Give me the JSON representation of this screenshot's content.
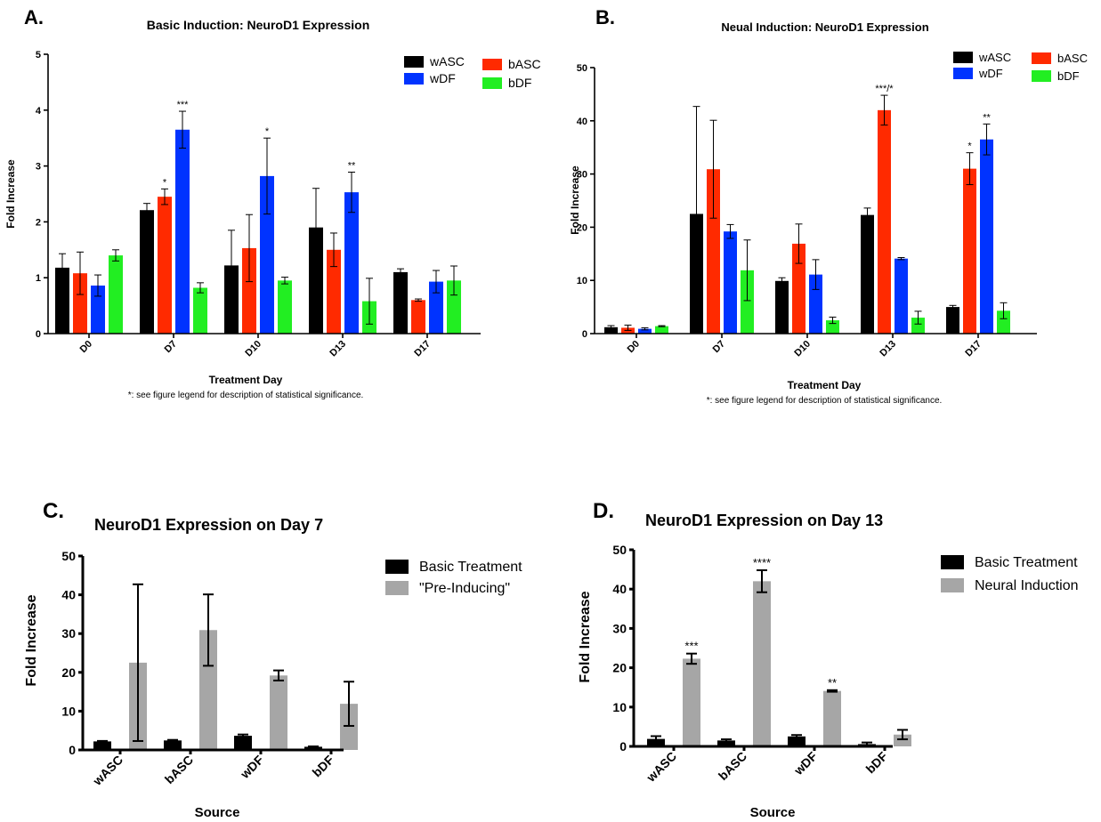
{
  "chart_data": [
    {
      "panel": "A.",
      "type": "bar",
      "title": "Basic Induction: NeuroD1 Expression",
      "xlabel": "Treatment Day",
      "ylabel": "Fold Increase",
      "note": "*: see figure legend for description of statistical significance.",
      "ylim": [
        0,
        5
      ],
      "yticks": [
        "0",
        "1",
        "2",
        "3",
        "4",
        "5"
      ],
      "categories": [
        "D0",
        "D7",
        "D10",
        "D13",
        "D17"
      ],
      "series": [
        {
          "name": "wASC",
          "color": "#000000",
          "values": [
            1.18,
            2.21,
            1.22,
            1.9,
            1.1
          ],
          "errors": [
            0.25,
            0.12,
            0.63,
            0.7,
            0.06
          ],
          "sig": [
            "",
            "",
            "",
            "",
            ""
          ]
        },
        {
          "name": "bASC",
          "color": "#ff2a00",
          "values": [
            1.08,
            2.45,
            1.53,
            1.5,
            0.6
          ],
          "errors": [
            0.38,
            0.14,
            0.6,
            0.3,
            0.02
          ],
          "sig": [
            "",
            "*",
            "",
            "",
            ""
          ]
        },
        {
          "name": "wDF",
          "color": "#0033ff",
          "values": [
            0.86,
            3.65,
            2.82,
            2.53,
            0.93
          ],
          "errors": [
            0.19,
            0.33,
            0.68,
            0.36,
            0.2
          ],
          "sig": [
            "",
            "***",
            "*",
            "**",
            ""
          ]
        },
        {
          "name": "bDF",
          "color": "#22ee22",
          "values": [
            1.4,
            0.82,
            0.95,
            0.58,
            0.95
          ],
          "errors": [
            0.1,
            0.09,
            0.06,
            0.41,
            0.26
          ],
          "sig": [
            "",
            "",
            "",
            "",
            ""
          ]
        }
      ]
    },
    {
      "panel": "B.",
      "type": "bar",
      "title": "Neual Induction: NeuroD1 Expression",
      "xlabel": "Treatment Day",
      "ylabel": "Fold Increase",
      "note": "*: see figure legend for description of statistical significance.",
      "ylim": [
        0,
        50
      ],
      "yticks": [
        "0",
        "10",
        "20",
        "30",
        "40",
        "50"
      ],
      "categories": [
        "D0",
        "D7",
        "D10",
        "D13",
        "D17"
      ],
      "series": [
        {
          "name": "wASC",
          "color": "#000000",
          "values": [
            1.2,
            22.5,
            9.9,
            22.3,
            5.0
          ],
          "errors": [
            0.3,
            20.2,
            0.6,
            1.3,
            0.3
          ],
          "sig": [
            "",
            "",
            "",
            "",
            ""
          ]
        },
        {
          "name": "bASC",
          "color": "#ff2a00",
          "values": [
            1.1,
            30.9,
            16.9,
            42.0,
            31.0
          ],
          "errors": [
            0.5,
            9.2,
            3.7,
            2.8,
            3.0
          ],
          "sig": [
            "",
            "",
            "",
            "***/*",
            "*"
          ]
        },
        {
          "name": "wDF",
          "color": "#0033ff",
          "values": [
            0.9,
            19.2,
            11.1,
            14.1,
            36.5
          ],
          "errors": [
            0.2,
            1.3,
            2.8,
            0.2,
            2.9
          ],
          "sig": [
            "",
            "",
            "",
            "",
            "**"
          ]
        },
        {
          "name": "bDF",
          "color": "#22ee22",
          "values": [
            1.4,
            11.9,
            2.5,
            3.0,
            4.3
          ],
          "errors": [
            0.1,
            5.7,
            0.6,
            1.2,
            1.5
          ],
          "sig": [
            "",
            "",
            "",
            "",
            ""
          ]
        }
      ]
    },
    {
      "panel": "C.",
      "type": "bar",
      "title": "NeuroD1 Expression on Day 7",
      "xlabel": "Source",
      "ylabel": "Fold Increase",
      "ylim": [
        0,
        50
      ],
      "yticks": [
        "0",
        "10",
        "20",
        "30",
        "40",
        "50"
      ],
      "categories": [
        "wASC",
        "bASC",
        "wDF",
        "bDF"
      ],
      "series": [
        {
          "name": "Basic Treatment",
          "color": "#000000",
          "values": [
            2.2,
            2.45,
            3.65,
            0.82
          ],
          "errors": [
            0.12,
            0.14,
            0.33,
            0.09
          ],
          "sig": [
            "",
            "",
            "",
            ""
          ]
        },
        {
          "name": "\"Pre-Inducing\"",
          "color": "#a6a6a6",
          "values": [
            22.5,
            30.9,
            19.2,
            11.9
          ],
          "errors": [
            20.2,
            9.2,
            1.3,
            5.7
          ],
          "sig": [
            "",
            "",
            "",
            ""
          ]
        }
      ]
    },
    {
      "panel": "D.",
      "type": "bar",
      "title": "NeuroD1 Expression on Day 13",
      "xlabel": "Source",
      "ylabel": "Fold Increase",
      "ylim": [
        0,
        50
      ],
      "yticks": [
        "0",
        "10",
        "20",
        "30",
        "40",
        "50"
      ],
      "categories": [
        "wASC",
        "bASC",
        "wDF",
        "bDF"
      ],
      "series": [
        {
          "name": "Basic Treatment",
          "color": "#000000",
          "values": [
            1.9,
            1.5,
            2.53,
            0.58
          ],
          "errors": [
            0.7,
            0.3,
            0.36,
            0.41
          ],
          "sig": [
            "",
            "",
            "",
            ""
          ]
        },
        {
          "name": "Neural Induction",
          "color": "#a6a6a6",
          "values": [
            22.3,
            42.0,
            14.1,
            3.0
          ],
          "errors": [
            1.3,
            2.8,
            0.2,
            1.2
          ],
          "sig": [
            "***",
            "****",
            "**",
            ""
          ]
        }
      ]
    }
  ]
}
